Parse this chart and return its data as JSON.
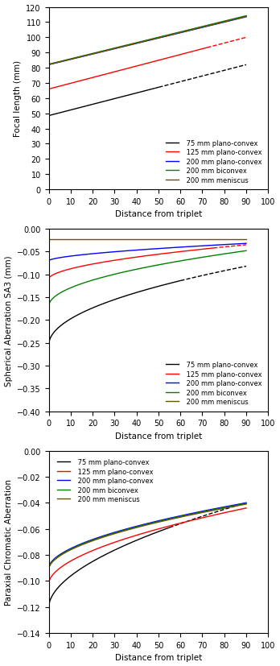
{
  "series_labels": [
    " 75 mm plano-convex",
    " 125 mm plano-convex",
    " 200 mm plano-convex",
    " 200 mm biconvex",
    " 200 mm meniscus"
  ],
  "colors": [
    "black",
    "red",
    "blue",
    "green",
    "#6B5000"
  ],
  "plot1": {
    "ylabel": "Focal length (mm)",
    "xlabel": "Distance from triplet",
    "ylim": [
      0,
      120
    ],
    "yticks": [
      0,
      10,
      20,
      30,
      40,
      50,
      60,
      70,
      80,
      90,
      100,
      110,
      120
    ]
  },
  "plot2": {
    "ylabel": "Spherical Aberration SA3 (mm)",
    "xlabel": "Distance from triplet",
    "ylim": [
      -0.4,
      0.0
    ],
    "yticks": [
      0.0,
      -0.05,
      -0.1,
      -0.15,
      -0.2,
      -0.25,
      -0.3,
      -0.35,
      -0.4
    ]
  },
  "plot3": {
    "ylabel": "Paraxial Chromatic Aberration",
    "xlabel": "Distance from triplet",
    "ylim": [
      -0.14,
      0.0
    ],
    "yticks": [
      0.0,
      -0.02,
      -0.04,
      -0.06,
      -0.08,
      -0.1,
      -0.12,
      -0.14
    ]
  },
  "xticks": [
    0,
    10,
    20,
    30,
    40,
    50,
    60,
    70,
    80,
    90,
    100
  ],
  "xlim": [
    0,
    100
  ]
}
